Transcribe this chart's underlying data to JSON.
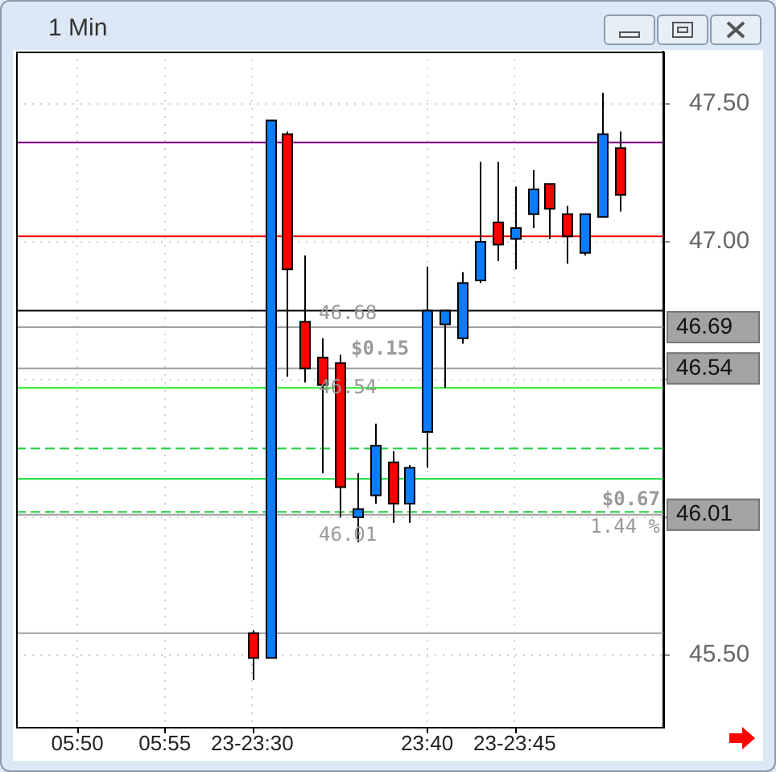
{
  "chart_data": {
    "type": "candlestick",
    "title": "1 Min",
    "categories": [
      null,
      null,
      null,
      "05:50",
      null,
      null,
      null,
      null,
      "05:55",
      null,
      null,
      null,
      null,
      "23-23:30",
      null,
      null,
      null,
      null,
      null,
      null,
      null,
      null,
      null,
      "23:40",
      null,
      null,
      null,
      null,
      "23-23:45",
      null,
      null,
      null,
      null,
      null,
      null,
      null,
      null
    ],
    "ohlc": [
      null,
      null,
      null,
      null,
      null,
      null,
      null,
      null,
      null,
      null,
      null,
      null,
      null,
      [
        45.58,
        45.59,
        45.41,
        45.49
      ],
      [
        45.49,
        47.44,
        45.49,
        47.44
      ],
      [
        47.39,
        47.4,
        46.51,
        46.9
      ],
      [
        46.71,
        46.95,
        46.49,
        46.54
      ],
      [
        46.58,
        46.65,
        46.16,
        46.48
      ],
      [
        46.56,
        46.59,
        46.0,
        46.11
      ],
      [
        46.0,
        46.16,
        45.91,
        46.03
      ],
      [
        46.08,
        46.34,
        46.05,
        46.26
      ],
      [
        46.2,
        46.24,
        45.98,
        46.05
      ],
      [
        46.05,
        46.19,
        45.98,
        46.18
      ],
      [
        46.31,
        46.91,
        46.18,
        46.75
      ],
      [
        46.7,
        46.75,
        46.47,
        46.75
      ],
      [
        46.65,
        46.89,
        46.63,
        46.85
      ],
      [
        46.86,
        47.29,
        46.85,
        47.0
      ],
      [
        47.07,
        47.29,
        46.93,
        46.99
      ],
      [
        47.01,
        47.2,
        46.9,
        47.05
      ],
      [
        47.1,
        47.26,
        47.05,
        47.19
      ],
      [
        47.21,
        47.21,
        47.01,
        47.12
      ],
      [
        47.1,
        47.13,
        46.92,
        47.02
      ],
      [
        46.96,
        47.1,
        46.95,
        47.1
      ],
      [
        47.09,
        47.54,
        47.09,
        47.39
      ],
      [
        47.34,
        47.4,
        47.11,
        47.17
      ],
      null,
      null
    ],
    "colors": [
      null,
      null,
      null,
      null,
      null,
      null,
      null,
      null,
      null,
      null,
      null,
      null,
      null,
      "#ff0000",
      "#0a7cff",
      "#ff0000",
      "#ff0000",
      "#ff0000",
      "#ff0000",
      "#0a7cff",
      "#0a7cff",
      "#ff0000",
      "#0a7cff",
      "#0a7cff",
      "#0a7cff",
      "#0a7cff",
      "#0a7cff",
      "#ff0000",
      "#0a7cff",
      "#0a7cff",
      "#ff0000",
      "#ff0000",
      "#0a7cff",
      "#0a7cff",
      "#ff0000",
      null,
      null
    ],
    "ylim": [
      45.24,
      47.69
    ],
    "yticks": [
      {
        "value": 45.5,
        "label": "45.50"
      },
      {
        "value": 46.0,
        "label": null
      },
      {
        "value": 46.5,
        "label": null
      },
      {
        "value": 47.0,
        "label": "47.00"
      },
      {
        "value": 47.5,
        "label": "47.50"
      }
    ],
    "grid": true,
    "ref_lines": [
      {
        "axis": "y",
        "value": 47.36,
        "color": "#800080"
      },
      {
        "axis": "y",
        "value": 47.02,
        "color": "#ff0000"
      },
      {
        "axis": "y",
        "value": 46.75,
        "color": "#000000"
      },
      {
        "axis": "y",
        "value": 46.47,
        "color": "#22ee22"
      },
      {
        "axis": "y",
        "value": 46.25,
        "color": "#22cc44",
        "line_style": "dashed"
      },
      {
        "axis": "y",
        "value": 46.14,
        "color": "#11dd33"
      },
      {
        "axis": "y",
        "value": 46.02,
        "color": "#22cc44",
        "line_style": "dashed"
      },
      {
        "axis": "y",
        "value": 45.58,
        "color": "#a0a0a0"
      },
      {
        "axis": "y",
        "value": 46.69,
        "color": "#a0a0a0",
        "label": "46.69"
      },
      {
        "axis": "y",
        "value": 46.54,
        "color": "#a0a0a0",
        "label": "46.54"
      },
      {
        "axis": "y",
        "value": 46.01,
        "color": "#a0a0a0",
        "label": "46.01"
      }
    ],
    "annotations": [
      {
        "text": "46.68",
        "y": 46.68
      },
      "$0.15",
      {
        "text": "46.54",
        "y": 46.54
      },
      {
        "text": "46.01",
        "y": 46.01
      },
      {
        "text": "$0.67",
        "y": 46.01
      },
      {
        "text": "1.44 %",
        "y": 46.01
      }
    ]
  }
}
